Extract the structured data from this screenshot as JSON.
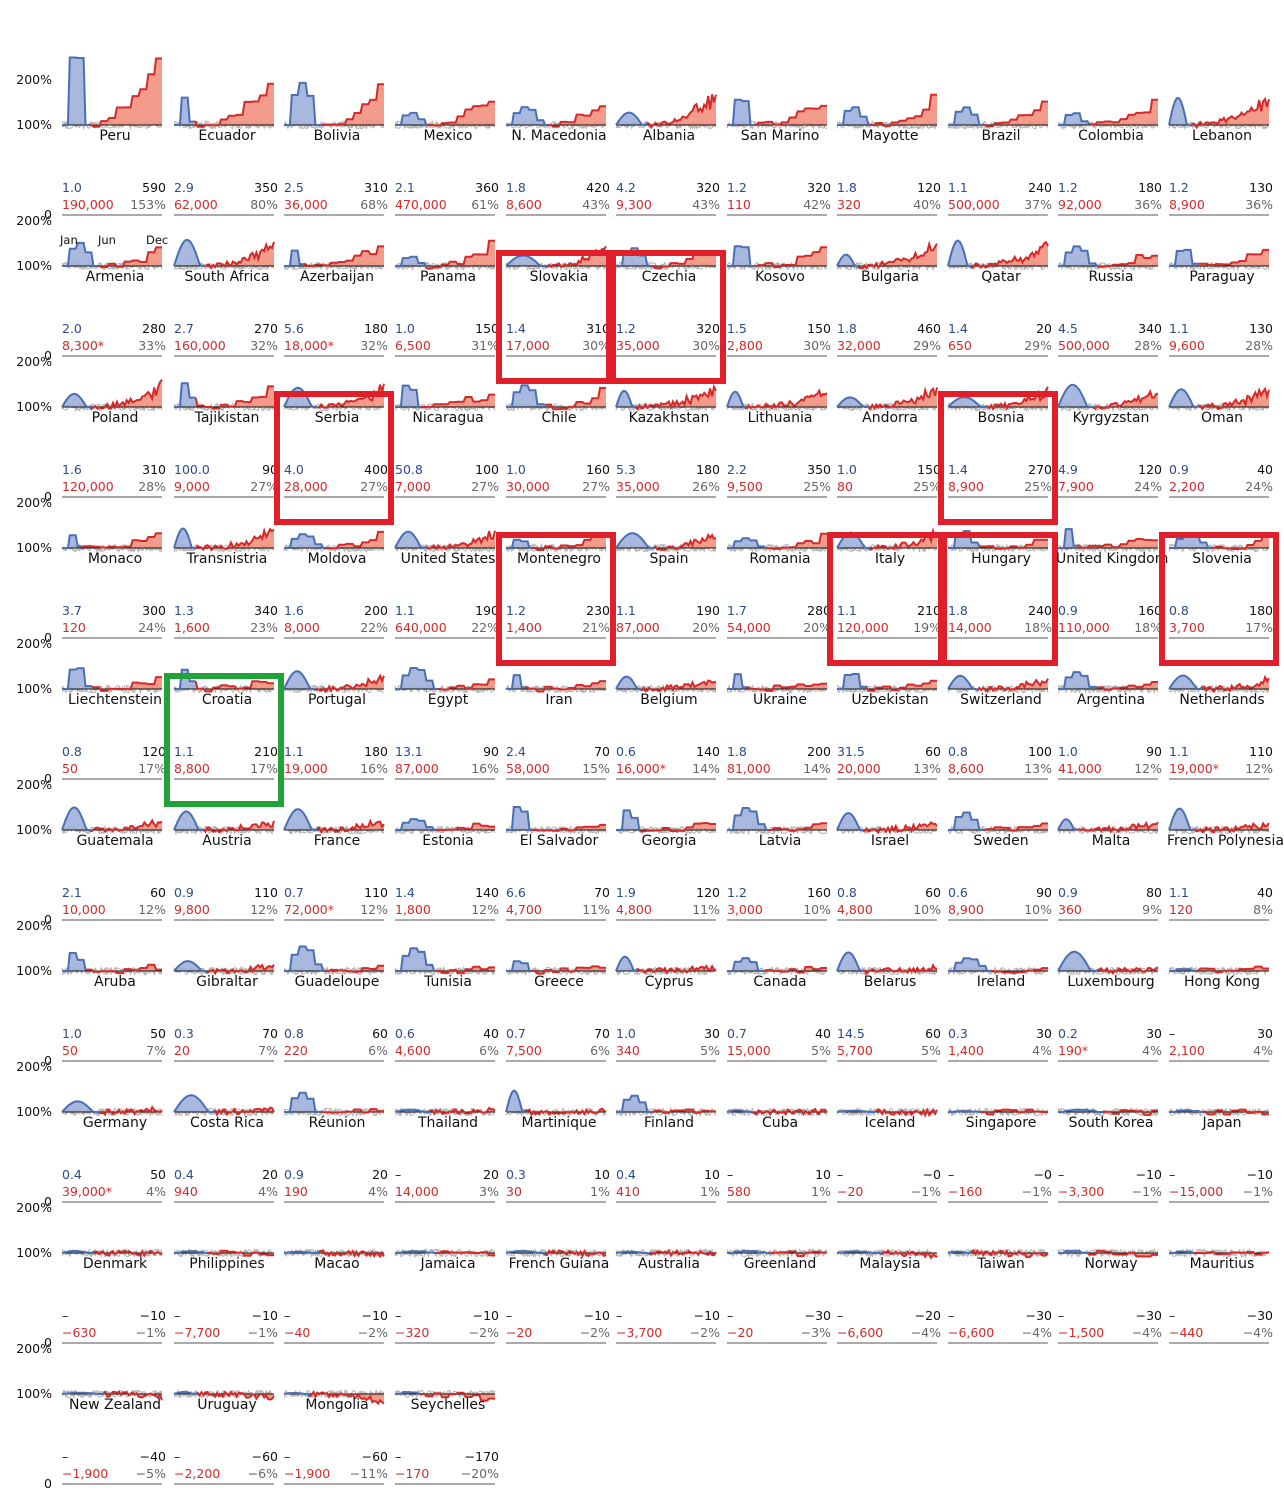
{
  "figure": {
    "y_ticks": [
      "200%",
      "100%",
      "0"
    ],
    "month_labels": [
      "Jan",
      "Jun",
      "Dec"
    ]
  },
  "chart_data": {
    "type": "area",
    "ylim": [
      0,
      2
    ],
    "colors": {
      "first_wave": "#4a6fb3",
      "first_wave_fill": "#9fb0db",
      "second_wave": "#d42a2a",
      "second_wave_fill": "#f2917e",
      "other_years": "#b3b3b3",
      "baseline": "#111111"
    },
    "columns": [
      "country",
      "first_wave_peak",
      "total_weekly",
      "excess_deaths",
      "excess_percent"
    ],
    "panels": [
      {
        "country": "Peru",
        "v1": "1.0",
        "v2": "590",
        "deaths": "190,000",
        "pct": "153%"
      },
      {
        "country": "Ecuador",
        "v1": "2.9",
        "v2": "350",
        "deaths": "62,000",
        "pct": "80%"
      },
      {
        "country": "Bolivia",
        "v1": "2.5",
        "v2": "310",
        "deaths": "36,000",
        "pct": "68%"
      },
      {
        "country": "Mexico",
        "v1": "2.1",
        "v2": "360",
        "deaths": "470,000",
        "pct": "61%"
      },
      {
        "country": "N. Macedonia",
        "v1": "1.8",
        "v2": "420",
        "deaths": "8,600",
        "pct": "43%"
      },
      {
        "country": "Albania",
        "v1": "4.2",
        "v2": "320",
        "deaths": "9,300",
        "pct": "43%"
      },
      {
        "country": "San Marino",
        "v1": "1.2",
        "v2": "320",
        "deaths": "110",
        "pct": "42%"
      },
      {
        "country": "Mayotte",
        "v1": "1.8",
        "v2": "120",
        "deaths": "320",
        "pct": "40%"
      },
      {
        "country": "Brazil",
        "v1": "1.1",
        "v2": "240",
        "deaths": "500,000",
        "pct": "37%"
      },
      {
        "country": "Colombia",
        "v1": "1.2",
        "v2": "180",
        "deaths": "92,000",
        "pct": "36%"
      },
      {
        "country": "Lebanon",
        "v1": "1.2",
        "v2": "130",
        "deaths": "8,900",
        "pct": "36%"
      },
      {
        "country": "Armenia",
        "v1": "2.0",
        "v2": "280",
        "deaths": "8,300*",
        "pct": "33%"
      },
      {
        "country": "South Africa",
        "v1": "2.7",
        "v2": "270",
        "deaths": "160,000",
        "pct": "32%"
      },
      {
        "country": "Azerbaijan",
        "v1": "5.6",
        "v2": "180",
        "deaths": "18,000*",
        "pct": "32%"
      },
      {
        "country": "Panama",
        "v1": "1.0",
        "v2": "150",
        "deaths": "6,500",
        "pct": "31%"
      },
      {
        "country": "Slovakia",
        "v1": "1.4",
        "v2": "310",
        "deaths": "17,000",
        "pct": "30%"
      },
      {
        "country": "Czechia",
        "v1": "1.2",
        "v2": "320",
        "deaths": "35,000",
        "pct": "30%"
      },
      {
        "country": "Kosovo",
        "v1": "1.5",
        "v2": "150",
        "deaths": "2,800",
        "pct": "30%"
      },
      {
        "country": "Bulgaria",
        "v1": "1.8",
        "v2": "460",
        "deaths": "32,000",
        "pct": "29%"
      },
      {
        "country": "Qatar",
        "v1": "1.4",
        "v2": "20",
        "deaths": "650",
        "pct": "29%"
      },
      {
        "country": "Russia",
        "v1": "4.5",
        "v2": "340",
        "deaths": "500,000",
        "pct": "28%"
      },
      {
        "country": "Paraguay",
        "v1": "1.1",
        "v2": "130",
        "deaths": "9,600",
        "pct": "28%"
      },
      {
        "country": "Poland",
        "v1": "1.6",
        "v2": "310",
        "deaths": "120,000",
        "pct": "28%"
      },
      {
        "country": "Tajikistan",
        "v1": "100.0",
        "v2": "90",
        "deaths": "9,000",
        "pct": "27%"
      },
      {
        "country": "Serbia",
        "v1": "4.0",
        "v2": "400",
        "deaths": "28,000",
        "pct": "27%"
      },
      {
        "country": "Nicaragua",
        "v1": "50.8",
        "v2": "100",
        "deaths": "7,000",
        "pct": "27%"
      },
      {
        "country": "Chile",
        "v1": "1.0",
        "v2": "160",
        "deaths": "30,000",
        "pct": "27%"
      },
      {
        "country": "Kazakhstan",
        "v1": "5.3",
        "v2": "180",
        "deaths": "35,000",
        "pct": "26%"
      },
      {
        "country": "Lithuania",
        "v1": "2.2",
        "v2": "350",
        "deaths": "9,500",
        "pct": "25%"
      },
      {
        "country": "Andorra",
        "v1": "1.0",
        "v2": "150",
        "deaths": "80",
        "pct": "25%"
      },
      {
        "country": "Bosnia",
        "v1": "1.4",
        "v2": "270",
        "deaths": "8,900",
        "pct": "25%"
      },
      {
        "country": "Kyrgyzstan",
        "v1": "4.9",
        "v2": "120",
        "deaths": "7,900",
        "pct": "24%"
      },
      {
        "country": "Oman",
        "v1": "0.9",
        "v2": "40",
        "deaths": "2,200",
        "pct": "24%"
      },
      {
        "country": "Monaco",
        "v1": "3.7",
        "v2": "300",
        "deaths": "120",
        "pct": "24%"
      },
      {
        "country": "Transnistria",
        "v1": "1.3",
        "v2": "340",
        "deaths": "1,600",
        "pct": "23%"
      },
      {
        "country": "Moldova",
        "v1": "1.6",
        "v2": "200",
        "deaths": "8,000",
        "pct": "22%"
      },
      {
        "country": "United States",
        "v1": "1.1",
        "v2": "190",
        "deaths": "640,000",
        "pct": "22%"
      },
      {
        "country": "Montenegro",
        "v1": "1.2",
        "v2": "230",
        "deaths": "1,400",
        "pct": "21%"
      },
      {
        "country": "Spain",
        "v1": "1.1",
        "v2": "190",
        "deaths": "87,000",
        "pct": "20%"
      },
      {
        "country": "Romania",
        "v1": "1.7",
        "v2": "280",
        "deaths": "54,000",
        "pct": "20%"
      },
      {
        "country": "Italy",
        "v1": "1.1",
        "v2": "210",
        "deaths": "120,000",
        "pct": "19%"
      },
      {
        "country": "Hungary",
        "v1": "1.8",
        "v2": "240",
        "deaths": "14,000",
        "pct": "18%"
      },
      {
        "country": "United Kingdom",
        "v1": "0.9",
        "v2": "160",
        "deaths": "110,000",
        "pct": "18%"
      },
      {
        "country": "Slovenia",
        "v1": "0.8",
        "v2": "180",
        "deaths": "3,700",
        "pct": "17%"
      },
      {
        "country": "Liechtenstein",
        "v1": "0.8",
        "v2": "120",
        "deaths": "50",
        "pct": "17%"
      },
      {
        "country": "Croatia",
        "v1": "1.1",
        "v2": "210",
        "deaths": "8,800",
        "pct": "17%"
      },
      {
        "country": "Portugal",
        "v1": "1.1",
        "v2": "180",
        "deaths": "19,000",
        "pct": "16%"
      },
      {
        "country": "Egypt",
        "v1": "13.1",
        "v2": "90",
        "deaths": "87,000",
        "pct": "16%"
      },
      {
        "country": "Iran",
        "v1": "2.4",
        "v2": "70",
        "deaths": "58,000",
        "pct": "15%"
      },
      {
        "country": "Belgium",
        "v1": "0.6",
        "v2": "140",
        "deaths": "16,000*",
        "pct": "14%"
      },
      {
        "country": "Ukraine",
        "v1": "1.8",
        "v2": "200",
        "deaths": "81,000",
        "pct": "14%"
      },
      {
        "country": "Uzbekistan",
        "v1": "31.5",
        "v2": "60",
        "deaths": "20,000",
        "pct": "13%"
      },
      {
        "country": "Switzerland",
        "v1": "0.8",
        "v2": "100",
        "deaths": "8,600",
        "pct": "13%"
      },
      {
        "country": "Argentina",
        "v1": "1.0",
        "v2": "90",
        "deaths": "41,000",
        "pct": "12%"
      },
      {
        "country": "Netherlands",
        "v1": "1.1",
        "v2": "110",
        "deaths": "19,000*",
        "pct": "12%"
      },
      {
        "country": "Guatemala",
        "v1": "2.1",
        "v2": "60",
        "deaths": "10,000",
        "pct": "12%"
      },
      {
        "country": "Austria",
        "v1": "0.9",
        "v2": "110",
        "deaths": "9,800",
        "pct": "12%"
      },
      {
        "country": "France",
        "v1": "0.7",
        "v2": "110",
        "deaths": "72,000*",
        "pct": "12%"
      },
      {
        "country": "Estonia",
        "v1": "1.4",
        "v2": "140",
        "deaths": "1,800",
        "pct": "12%"
      },
      {
        "country": "El Salvador",
        "v1": "6.6",
        "v2": "70",
        "deaths": "4,700",
        "pct": "11%"
      },
      {
        "country": "Georgia",
        "v1": "1.9",
        "v2": "120",
        "deaths": "4,800",
        "pct": "11%"
      },
      {
        "country": "Latvia",
        "v1": "1.2",
        "v2": "160",
        "deaths": "3,000",
        "pct": "10%"
      },
      {
        "country": "Israel",
        "v1": "0.8",
        "v2": "60",
        "deaths": "4,800",
        "pct": "10%"
      },
      {
        "country": "Sweden",
        "v1": "0.6",
        "v2": "90",
        "deaths": "8,900",
        "pct": "10%"
      },
      {
        "country": "Malta",
        "v1": "0.9",
        "v2": "80",
        "deaths": "360",
        "pct": "9%"
      },
      {
        "country": "French Polynesia",
        "v1": "1.1",
        "v2": "40",
        "deaths": "120",
        "pct": "8%"
      },
      {
        "country": "Aruba",
        "v1": "1.0",
        "v2": "50",
        "deaths": "50",
        "pct": "7%"
      },
      {
        "country": "Gibraltar",
        "v1": "0.3",
        "v2": "70",
        "deaths": "20",
        "pct": "7%"
      },
      {
        "country": "Guadeloupe",
        "v1": "0.8",
        "v2": "60",
        "deaths": "220",
        "pct": "6%"
      },
      {
        "country": "Tunisia",
        "v1": "0.6",
        "v2": "40",
        "deaths": "4,600",
        "pct": "6%"
      },
      {
        "country": "Greece",
        "v1": "0.7",
        "v2": "70",
        "deaths": "7,500",
        "pct": "6%"
      },
      {
        "country": "Cyprus",
        "v1": "1.0",
        "v2": "30",
        "deaths": "340",
        "pct": "5%"
      },
      {
        "country": "Canada",
        "v1": "0.7",
        "v2": "40",
        "deaths": "15,000",
        "pct": "5%"
      },
      {
        "country": "Belarus",
        "v1": "14.5",
        "v2": "60",
        "deaths": "5,700",
        "pct": "5%"
      },
      {
        "country": "Ireland",
        "v1": "0.3",
        "v2": "30",
        "deaths": "1,400",
        "pct": "4%"
      },
      {
        "country": "Luxembourg",
        "v1": "0.2",
        "v2": "30",
        "deaths": "190*",
        "pct": "4%"
      },
      {
        "country": "Hong Kong",
        "v1": "–",
        "v2": "30",
        "deaths": "2,100",
        "pct": "4%"
      },
      {
        "country": "Germany",
        "v1": "0.4",
        "v2": "50",
        "deaths": "39,000*",
        "pct": "4%"
      },
      {
        "country": "Costa Rica",
        "v1": "0.4",
        "v2": "20",
        "deaths": "940",
        "pct": "4%"
      },
      {
        "country": "Réunion",
        "v1": "0.9",
        "v2": "20",
        "deaths": "190",
        "pct": "4%"
      },
      {
        "country": "Thailand",
        "v1": "–",
        "v2": "20",
        "deaths": "14,000",
        "pct": "3%"
      },
      {
        "country": "Martinique",
        "v1": "0.3",
        "v2": "10",
        "deaths": "30",
        "pct": "1%"
      },
      {
        "country": "Finland",
        "v1": "0.4",
        "v2": "10",
        "deaths": "410",
        "pct": "1%"
      },
      {
        "country": "Cuba",
        "v1": "–",
        "v2": "10",
        "deaths": "580",
        "pct": "1%"
      },
      {
        "country": "Iceland",
        "v1": "–",
        "v2": "−0",
        "deaths": "−20",
        "pct": "−1%"
      },
      {
        "country": "Singapore",
        "v1": "–",
        "v2": "−0",
        "deaths": "−160",
        "pct": "−1%"
      },
      {
        "country": "South Korea",
        "v1": "–",
        "v2": "−10",
        "deaths": "−3,300",
        "pct": "−1%"
      },
      {
        "country": "Japan",
        "v1": "–",
        "v2": "−10",
        "deaths": "−15,000",
        "pct": "−1%"
      },
      {
        "country": "Denmark",
        "v1": "–",
        "v2": "−10",
        "deaths": "−630",
        "pct": "−1%"
      },
      {
        "country": "Philippines",
        "v1": "–",
        "v2": "−10",
        "deaths": "−7,700",
        "pct": "−1%"
      },
      {
        "country": "Macao",
        "v1": "–",
        "v2": "−10",
        "deaths": "−40",
        "pct": "−2%"
      },
      {
        "country": "Jamaica",
        "v1": "–",
        "v2": "−10",
        "deaths": "−320",
        "pct": "−2%"
      },
      {
        "country": "French Guiana",
        "v1": "–",
        "v2": "−10",
        "deaths": "−20",
        "pct": "−2%"
      },
      {
        "country": "Australia",
        "v1": "–",
        "v2": "−10",
        "deaths": "−3,700",
        "pct": "−2%"
      },
      {
        "country": "Greenland",
        "v1": "–",
        "v2": "−30",
        "deaths": "−20",
        "pct": "−3%"
      },
      {
        "country": "Malaysia",
        "v1": "–",
        "v2": "−20",
        "deaths": "−6,600",
        "pct": "−4%"
      },
      {
        "country": "Taiwan",
        "v1": "–",
        "v2": "−30",
        "deaths": "−6,600",
        "pct": "−4%"
      },
      {
        "country": "Norway",
        "v1": "–",
        "v2": "−30",
        "deaths": "−1,500",
        "pct": "−4%"
      },
      {
        "country": "Mauritius",
        "v1": "–",
        "v2": "−30",
        "deaths": "−440",
        "pct": "−4%"
      },
      {
        "country": "New Zealand",
        "v1": "–",
        "v2": "−40",
        "deaths": "−1,900",
        "pct": "−5%"
      },
      {
        "country": "Uruguay",
        "v1": "–",
        "v2": "−60",
        "deaths": "−2,200",
        "pct": "−6%"
      },
      {
        "country": "Mongolia",
        "v1": "–",
        "v2": "−60",
        "deaths": "−1,900",
        "pct": "−11%"
      },
      {
        "country": "Seychelles",
        "v1": "–",
        "v2": "−170",
        "deaths": "−170",
        "pct": "−20%"
      }
    ]
  },
  "highlights": {
    "red": [
      "Slovakia",
      "Czechia",
      "Serbia",
      "Bosnia",
      "Montenegro",
      "Italy",
      "Hungary",
      "Slovenia"
    ],
    "green": [
      "Croatia"
    ],
    "red_color": "#e01f2b",
    "green_color": "#22a33a"
  }
}
